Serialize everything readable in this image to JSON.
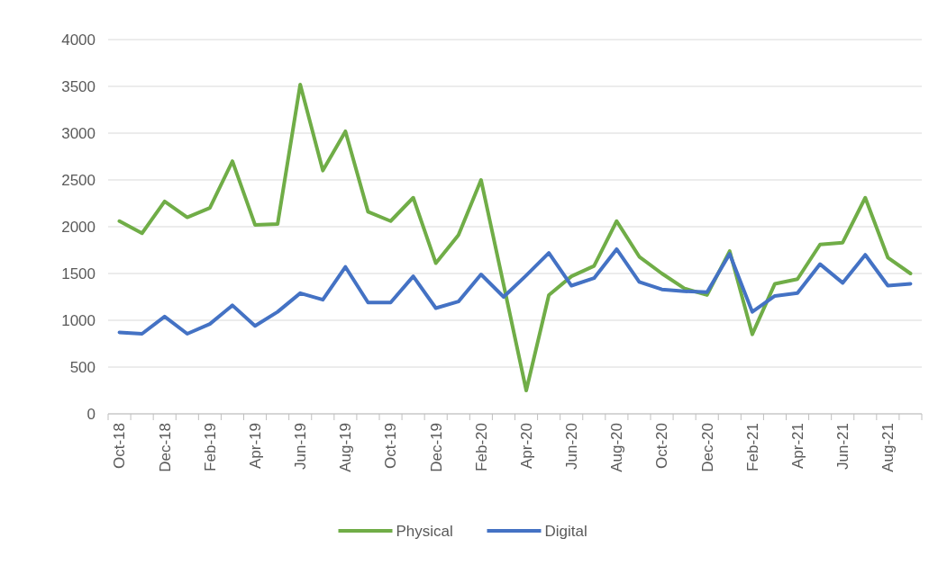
{
  "chart_data": {
    "type": "line",
    "categories": [
      "Oct-18",
      null,
      "Dec-18",
      null,
      "Feb-19",
      null,
      "Apr-19",
      null,
      "Jun-19",
      null,
      "Aug-19",
      null,
      "Oct-19",
      null,
      "Dec-19",
      null,
      "Feb-20",
      null,
      "Apr-20",
      null,
      "Jun-20",
      null,
      "Aug-20",
      null,
      "Oct-20",
      null,
      "Dec-20",
      null,
      "Feb-21",
      null,
      "Apr-21",
      null,
      "Jun-21",
      null,
      "Aug-21",
      null
    ],
    "series": [
      {
        "name": "Physical",
        "color": "#70ad47",
        "values": [
          2060,
          1930,
          2270,
          2100,
          2200,
          2700,
          2020,
          2030,
          3520,
          2600,
          3020,
          2160,
          2060,
          2310,
          1610,
          1910,
          2500,
          1380,
          250,
          1270,
          1470,
          1580,
          2060,
          1680,
          1500,
          1340,
          1270,
          1740,
          850,
          1390,
          1440,
          1810,
          1830,
          2310,
          1670,
          1500
        ]
      },
      {
        "name": "Digital",
        "color": "#4472c4",
        "values": [
          870,
          856,
          1040,
          856,
          960,
          1160,
          940,
          1090,
          1290,
          1220,
          1570,
          1190,
          1190,
          1470,
          1130,
          1200,
          1490,
          1250,
          1480,
          1720,
          1370,
          1450,
          1760,
          1410,
          1330,
          1310,
          1300,
          1710,
          1090,
          1260,
          1290,
          1600,
          1400,
          1700,
          1370,
          1390
        ]
      }
    ],
    "ylim": [
      0,
      4000
    ],
    "yticks": [
      0,
      500,
      1000,
      1500,
      2000,
      2500,
      3000,
      3500,
      4000
    ],
    "grid": "y",
    "legend": "bottom",
    "marker": "none",
    "line_style": "solid"
  }
}
